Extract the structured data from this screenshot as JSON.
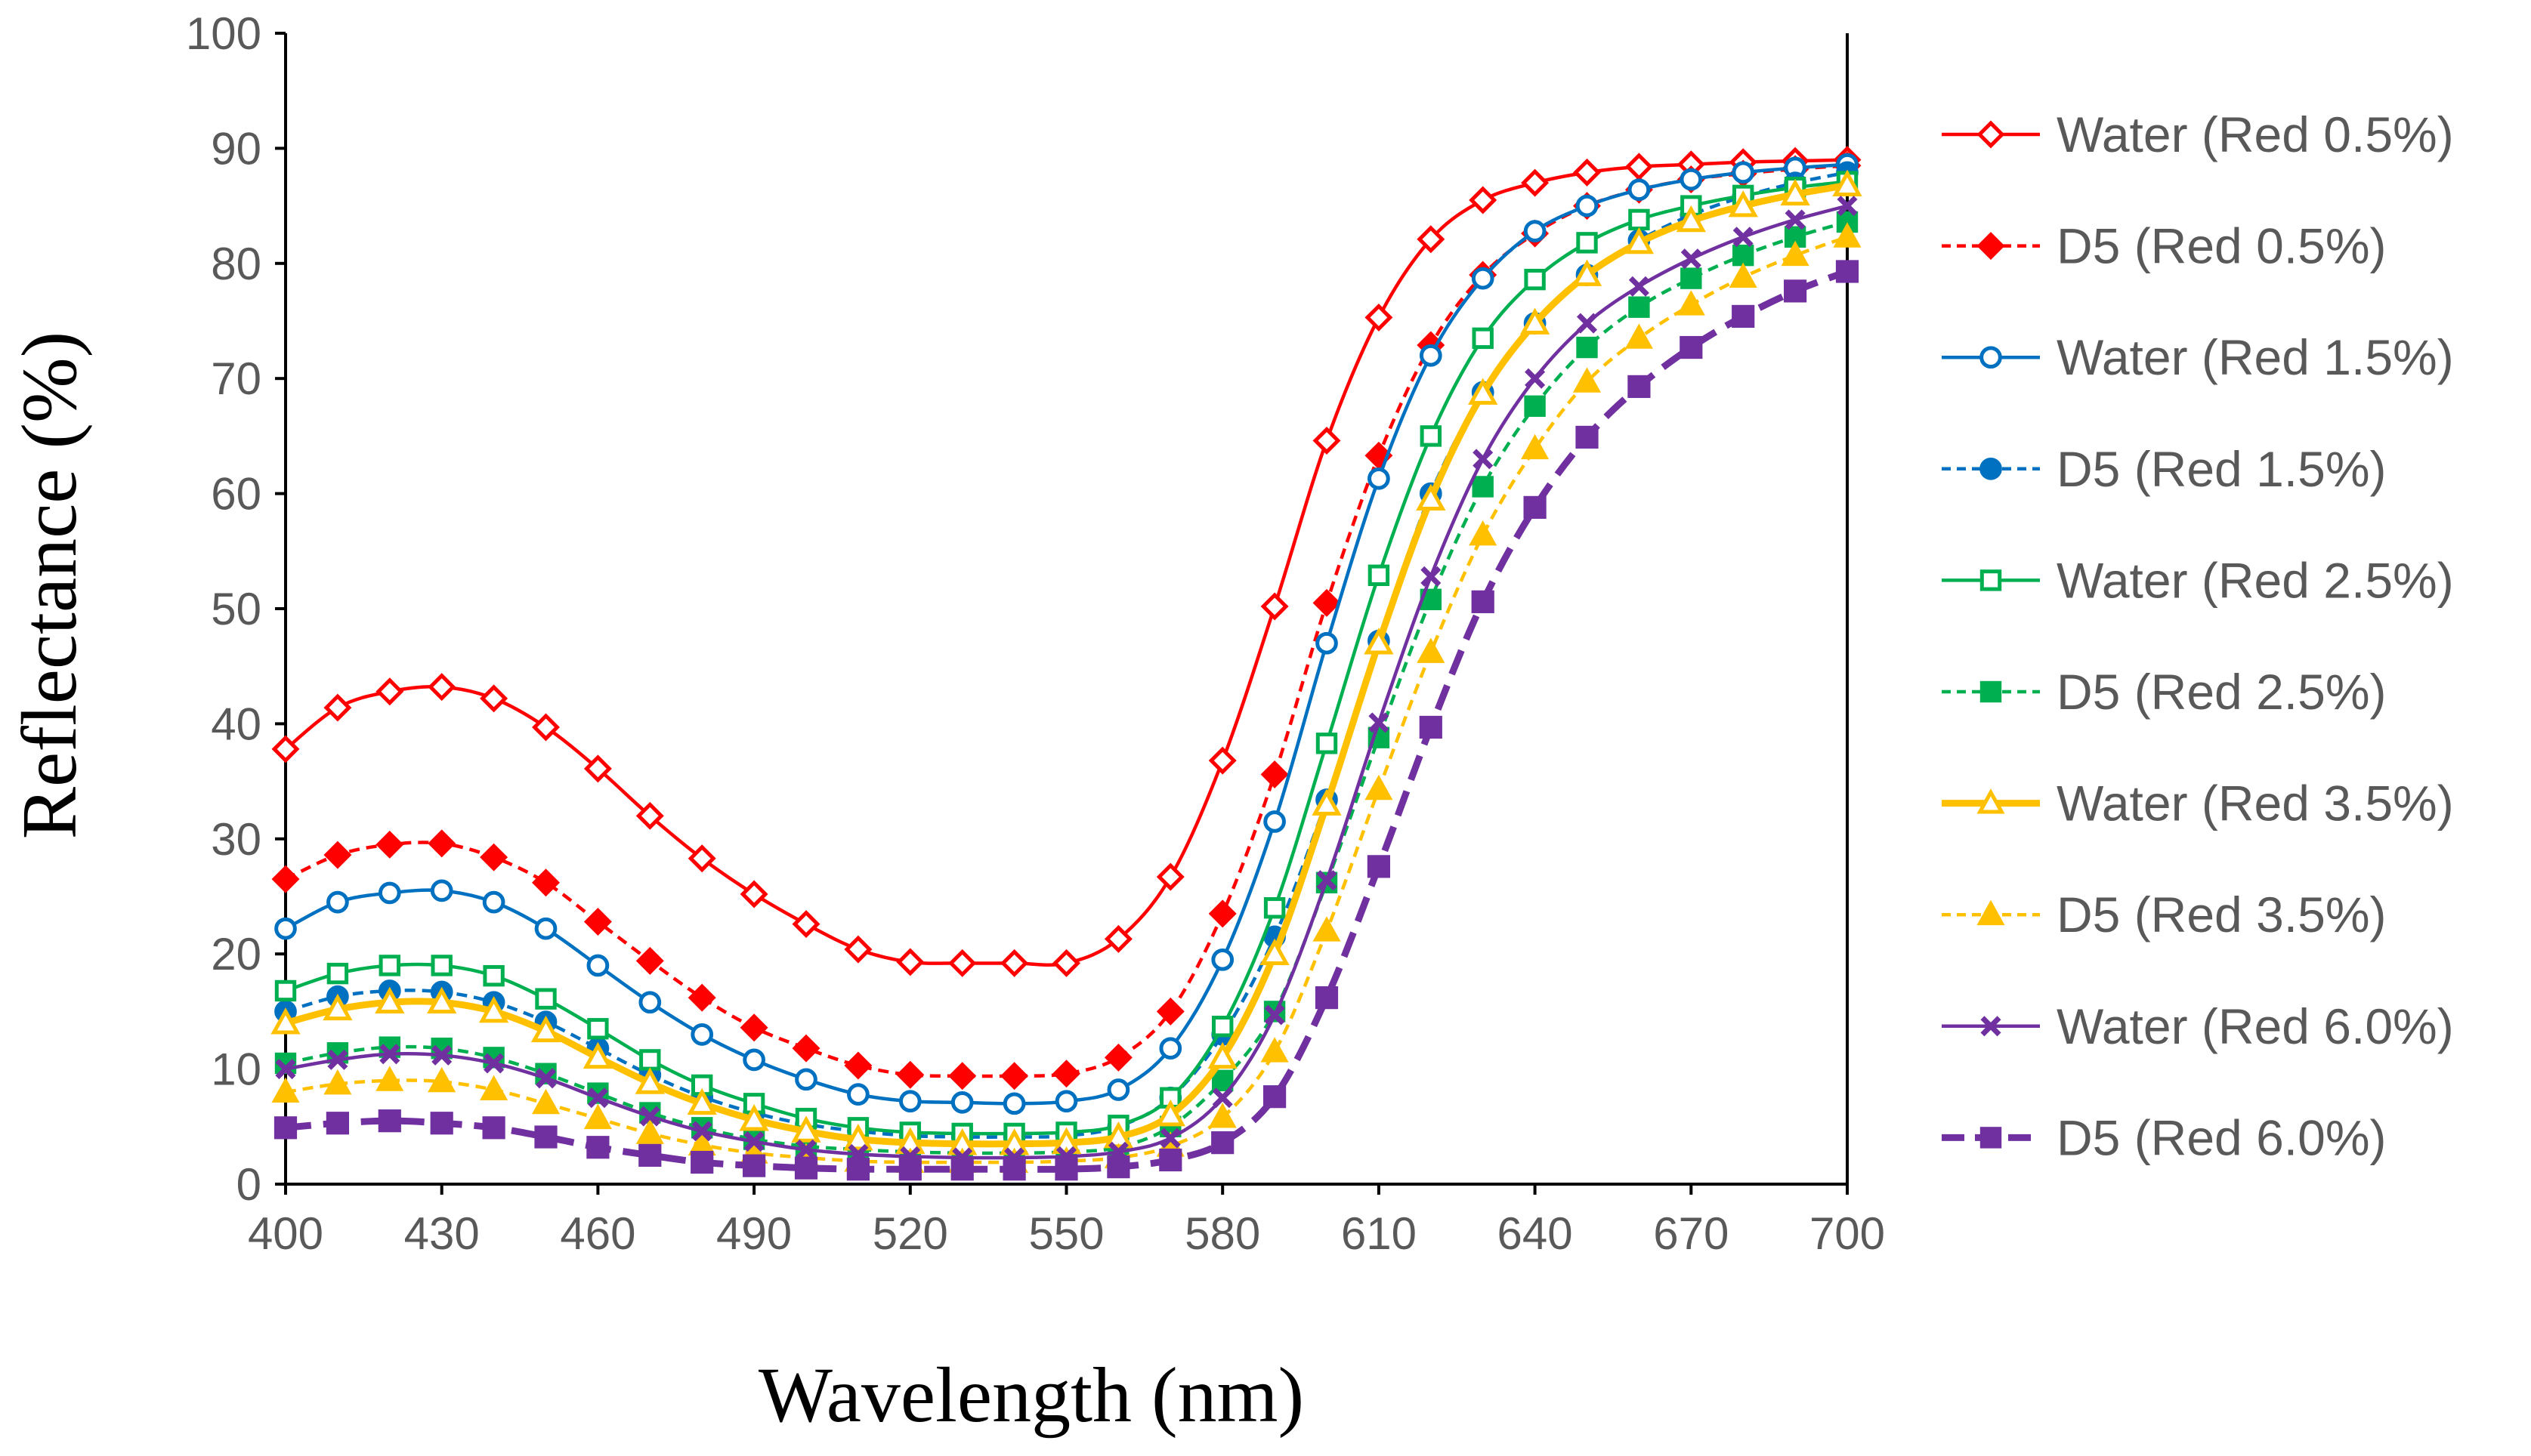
{
  "chart_data": {
    "type": "line",
    "title": "",
    "xlabel": "Wavelength (nm)",
    "ylabel": "Reflectance (%)",
    "xlim": [
      400,
      700
    ],
    "ylim": [
      0,
      100
    ],
    "xticks": [
      400,
      430,
      460,
      490,
      520,
      550,
      580,
      610,
      640,
      670,
      700
    ],
    "yticks": [
      0,
      10,
      20,
      30,
      40,
      50,
      60,
      70,
      80,
      90,
      100
    ],
    "legend_position": "right",
    "x": [
      400,
      410,
      420,
      430,
      440,
      450,
      460,
      470,
      480,
      490,
      500,
      510,
      520,
      530,
      540,
      550,
      560,
      570,
      580,
      590,
      600,
      610,
      620,
      630,
      640,
      650,
      660,
      670,
      680,
      690,
      700
    ],
    "series": [
      {
        "name": "Water (Red 0.5%)",
        "color": "#FF0000",
        "dash": "solid",
        "marker": "diamond",
        "filled": false,
        "width": "normal",
        "values": [
          37.8,
          41.4,
          42.8,
          43.2,
          42.2,
          39.7,
          36.1,
          32.0,
          28.3,
          25.2,
          22.6,
          20.4,
          19.3,
          19.2,
          19.2,
          19.2,
          21.3,
          26.7,
          36.8,
          50.2,
          64.6,
          75.3,
          82.1,
          85.5,
          87.0,
          87.9,
          88.4,
          88.6,
          88.8,
          88.9,
          89.0
        ]
      },
      {
        "name": "D5 (Red 0.5%)",
        "color": "#FF0000",
        "dash": "dashed",
        "marker": "diamond",
        "filled": true,
        "width": "normal",
        "values": [
          26.5,
          28.6,
          29.5,
          29.6,
          28.4,
          26.2,
          22.8,
          19.4,
          16.2,
          13.6,
          11.8,
          10.3,
          9.5,
          9.4,
          9.4,
          9.6,
          11.0,
          15.0,
          23.5,
          35.6,
          50.5,
          63.3,
          72.9,
          79.0,
          82.6,
          85.0,
          86.4,
          87.3,
          87.8,
          88.2,
          88.5
        ]
      },
      {
        "name": "Water (Red 1.5%)",
        "color": "#0070C0",
        "dash": "solid",
        "marker": "circle",
        "filled": false,
        "width": "normal",
        "values": [
          22.2,
          24.5,
          25.3,
          25.5,
          24.5,
          22.2,
          19.0,
          15.8,
          13.0,
          10.8,
          9.1,
          7.8,
          7.2,
          7.1,
          7.0,
          7.2,
          8.2,
          11.8,
          19.5,
          31.5,
          47.0,
          61.3,
          72.0,
          78.7,
          82.8,
          85.0,
          86.4,
          87.3,
          87.9,
          88.3,
          88.6
        ]
      },
      {
        "name": "D5 (Red 1.5%)",
        "color": "#0070C0",
        "dash": "dashed",
        "marker": "circle",
        "filled": true,
        "width": "normal",
        "values": [
          15.0,
          16.3,
          16.8,
          16.7,
          15.8,
          14.1,
          11.8,
          9.5,
          7.6,
          6.2,
          5.2,
          4.6,
          4.2,
          4.1,
          4.1,
          4.2,
          5.0,
          7.5,
          13.0,
          21.5,
          33.4,
          47.2,
          60.0,
          68.8,
          74.8,
          79.0,
          82.0,
          84.2,
          85.8,
          87.0,
          87.9
        ]
      },
      {
        "name": "Water (Red 2.5%)",
        "color": "#00B050",
        "dash": "solid",
        "marker": "square",
        "filled": false,
        "width": "normal",
        "values": [
          16.8,
          18.3,
          19.0,
          19.0,
          18.1,
          16.1,
          13.5,
          10.8,
          8.6,
          7.0,
          5.7,
          4.9,
          4.5,
          4.4,
          4.4,
          4.5,
          5.1,
          7.5,
          13.7,
          24.0,
          38.3,
          52.9,
          65.0,
          73.5,
          78.6,
          81.8,
          83.8,
          85.0,
          85.9,
          86.6,
          87.1
        ]
      },
      {
        "name": "D5 (Red 2.5%)",
        "color": "#00B050",
        "dash": "dashed",
        "marker": "square",
        "filled": true,
        "width": "normal",
        "values": [
          10.5,
          11.4,
          11.9,
          11.8,
          11.0,
          9.6,
          7.9,
          6.2,
          4.9,
          3.9,
          3.3,
          3.0,
          2.8,
          2.7,
          2.7,
          2.8,
          3.2,
          5.0,
          9.0,
          15.0,
          26.2,
          38.8,
          50.8,
          60.6,
          67.6,
          72.7,
          76.2,
          78.7,
          80.7,
          82.3,
          83.6
        ]
      },
      {
        "name": "Water (Red 3.5%)",
        "color": "#FFC000",
        "dash": "solid",
        "marker": "triangle",
        "filled": false,
        "width": "thick",
        "values": [
          14.0,
          15.2,
          15.8,
          15.8,
          15.0,
          13.3,
          11.0,
          8.8,
          7.0,
          5.6,
          4.6,
          3.9,
          3.6,
          3.5,
          3.5,
          3.6,
          4.1,
          6.0,
          11.0,
          20.0,
          33.0,
          47.0,
          59.5,
          68.7,
          74.8,
          79.0,
          81.8,
          83.7,
          85.0,
          86.0,
          86.8
        ]
      },
      {
        "name": "D5 (Red 3.5%)",
        "color": "#FFC000",
        "dash": "dashed",
        "marker": "triangle",
        "filled": true,
        "width": "normal",
        "values": [
          8.0,
          8.7,
          9.0,
          8.9,
          8.2,
          7.0,
          5.7,
          4.4,
          3.4,
          2.7,
          2.3,
          2.0,
          1.9,
          1.9,
          1.9,
          2.0,
          2.3,
          3.3,
          5.8,
          11.5,
          22.0,
          34.3,
          46.2,
          56.4,
          63.9,
          69.7,
          73.5,
          76.4,
          78.8,
          80.7,
          82.3
        ]
      },
      {
        "name": "Water (Red 6.0%)",
        "color": "#7030A0",
        "dash": "solid",
        "marker": "x",
        "filled": false,
        "width": "normal",
        "values": [
          10.0,
          10.8,
          11.3,
          11.2,
          10.5,
          9.2,
          7.5,
          5.9,
          4.6,
          3.7,
          3.0,
          2.6,
          2.4,
          2.3,
          2.3,
          2.4,
          2.8,
          4.0,
          7.5,
          14.7,
          26.4,
          40.1,
          52.8,
          63.0,
          70.0,
          74.8,
          78.0,
          80.4,
          82.3,
          83.8,
          85.0
        ]
      },
      {
        "name": "D5 (Red 6.0%)",
        "color": "#7030A0",
        "dash": "dashed",
        "marker": "square",
        "filled": true,
        "width": "thick",
        "values": [
          4.9,
          5.3,
          5.5,
          5.3,
          4.9,
          4.1,
          3.2,
          2.5,
          1.9,
          1.6,
          1.4,
          1.3,
          1.3,
          1.3,
          1.3,
          1.3,
          1.5,
          2.1,
          3.6,
          7.6,
          16.2,
          27.6,
          39.7,
          50.6,
          58.8,
          64.9,
          69.3,
          72.7,
          75.4,
          77.6,
          79.3
        ]
      }
    ]
  }
}
